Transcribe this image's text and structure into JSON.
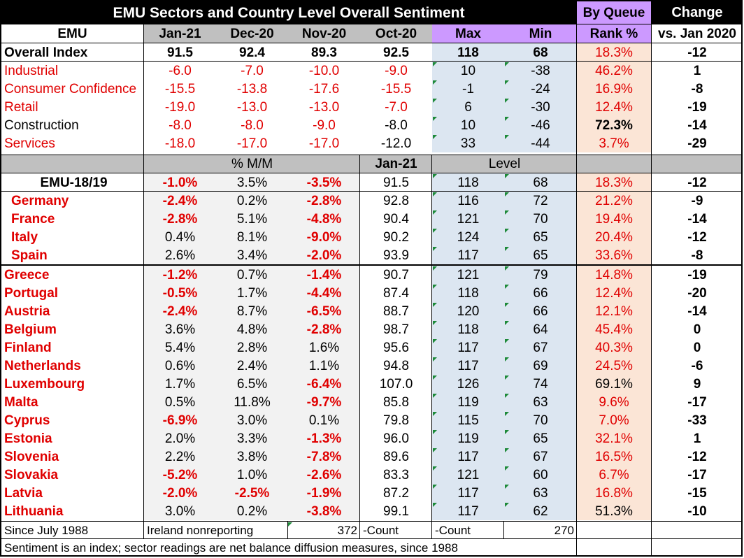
{
  "title": "EMU Sectors and Country Level Overall Sentiment",
  "hdr_queue": "By Queue",
  "hdr_change": "Change",
  "col_emu": "EMU",
  "col_jan21": "Jan-21",
  "col_dec20": "Dec-20",
  "col_nov20": "Nov-20",
  "col_oct20": "Oct-20",
  "col_max": "Max",
  "col_min": "Min",
  "col_rank": "Rank %",
  "col_vs": "vs. Jan 2020",
  "sectors": [
    {
      "name": "Overall Index",
      "jan": "91.5",
      "dec": "92.4",
      "nov": "89.3",
      "oct": "92.5",
      "max": "118",
      "min": "68",
      "rank": "18.3%",
      "chg": "-12"
    },
    {
      "name": "Industrial",
      "jan": "-6.0",
      "dec": "-7.0",
      "nov": "-10.0",
      "oct": "-9.0",
      "max": "10",
      "min": "-38",
      "rank": "46.2%",
      "chg": "1"
    },
    {
      "name": "Consumer Confidence",
      "jan": "-15.5",
      "dec": "-13.8",
      "nov": "-17.6",
      "oct": "-15.5",
      "max": "-1",
      "min": "-24",
      "rank": "16.9%",
      "chg": "-8"
    },
    {
      "name": "Retail",
      "jan": "-19.0",
      "dec": "-13.0",
      "nov": "-13.0",
      "oct": "-7.0",
      "max": "6",
      "min": "-30",
      "rank": "12.4%",
      "chg": "-19"
    },
    {
      "name": "Construction",
      "jan": "-8.0",
      "dec": "-8.0",
      "nov": "-9.0",
      "oct": "-8.0",
      "max": "10",
      "min": "-46",
      "rank": "72.3%",
      "chg": "-14"
    },
    {
      "name": "Services",
      "jan": "-18.0",
      "dec": "-17.0",
      "nov": "-17.0",
      "oct": "-12.0",
      "max": "33",
      "min": "-44",
      "rank": "3.7%",
      "chg": "-29"
    }
  ],
  "sub_mm": "% M/M",
  "sub_jan21": "Jan-21",
  "sub_level": "Level",
  "countries": [
    {
      "name": "EMU-18/19",
      "m1": "-1.0%",
      "m2": "3.5%",
      "m3": "-3.5%",
      "jan": "91.5",
      "max": "118",
      "min": "68",
      "rank": "18.3%",
      "chg": "-12"
    },
    {
      "name": "Germany",
      "m1": "-2.4%",
      "m2": "0.2%",
      "m3": "-2.8%",
      "jan": "92.8",
      "max": "116",
      "min": "72",
      "rank": "21.2%",
      "chg": "-9"
    },
    {
      "name": "France",
      "m1": "-2.8%",
      "m2": "5.1%",
      "m3": "-4.8%",
      "jan": "90.4",
      "max": "121",
      "min": "70",
      "rank": "19.4%",
      "chg": "-14"
    },
    {
      "name": "Italy",
      "m1": "0.4%",
      "m2": "8.1%",
      "m3": "-9.0%",
      "jan": "90.2",
      "max": "124",
      "min": "65",
      "rank": "20.4%",
      "chg": "-12"
    },
    {
      "name": "Spain",
      "m1": "2.6%",
      "m2": "3.4%",
      "m3": "-2.0%",
      "jan": "93.9",
      "max": "117",
      "min": "65",
      "rank": "33.6%",
      "chg": "-8"
    },
    {
      "name": "Greece",
      "m1": "-1.2%",
      "m2": "0.7%",
      "m3": "-1.4%",
      "jan": "90.7",
      "max": "121",
      "min": "79",
      "rank": "14.8%",
      "chg": "-19"
    },
    {
      "name": "Portugal",
      "m1": "-0.5%",
      "m2": "1.7%",
      "m3": "-4.4%",
      "jan": "87.4",
      "max": "118",
      "min": "66",
      "rank": "12.4%",
      "chg": "-20"
    },
    {
      "name": "Austria",
      "m1": "-2.4%",
      "m2": "8.7%",
      "m3": "-6.5%",
      "jan": "88.7",
      "max": "120",
      "min": "66",
      "rank": "12.1%",
      "chg": "-14"
    },
    {
      "name": "Belgium",
      "m1": "3.6%",
      "m2": "4.8%",
      "m3": "-2.8%",
      "jan": "98.7",
      "max": "118",
      "min": "64",
      "rank": "45.4%",
      "chg": "0"
    },
    {
      "name": "Finland",
      "m1": "5.4%",
      "m2": "2.8%",
      "m3": "1.6%",
      "jan": "95.6",
      "max": "117",
      "min": "67",
      "rank": "40.3%",
      "chg": "0"
    },
    {
      "name": "Netherlands",
      "m1": "0.6%",
      "m2": "2.4%",
      "m3": "1.1%",
      "jan": "94.8",
      "max": "117",
      "min": "69",
      "rank": "24.5%",
      "chg": "-6"
    },
    {
      "name": "Luxembourg",
      "m1": "1.7%",
      "m2": "6.5%",
      "m3": "-6.4%",
      "jan": "107.0",
      "max": "126",
      "min": "74",
      "rank": "69.1%",
      "chg": "9"
    },
    {
      "name": "Malta",
      "m1": "0.5%",
      "m2": "11.8%",
      "m3": "-9.7%",
      "jan": "85.8",
      "max": "119",
      "min": "63",
      "rank": "9.6%",
      "chg": "-17"
    },
    {
      "name": "Cyprus",
      "m1": "-6.9%",
      "m2": "3.0%",
      "m3": "0.1%",
      "jan": "79.8",
      "max": "115",
      "min": "70",
      "rank": "7.0%",
      "chg": "-33"
    },
    {
      "name": "Estonia",
      "m1": "2.0%",
      "m2": "3.3%",
      "m3": "-1.3%",
      "jan": "96.0",
      "max": "119",
      "min": "65",
      "rank": "32.1%",
      "chg": "1"
    },
    {
      "name": "Slovenia",
      "m1": "2.2%",
      "m2": "3.8%",
      "m3": "-7.8%",
      "jan": "89.6",
      "max": "117",
      "min": "67",
      "rank": "16.5%",
      "chg": "-12"
    },
    {
      "name": "Slovakia",
      "m1": "-5.2%",
      "m2": "1.0%",
      "m3": "-2.6%",
      "jan": "83.3",
      "max": "121",
      "min": "60",
      "rank": "6.7%",
      "chg": "-17"
    },
    {
      "name": "Latvia",
      "m1": "-2.0%",
      "m2": "-2.5%",
      "m3": "-1.9%",
      "jan": "87.2",
      "max": "117",
      "min": "63",
      "rank": "16.8%",
      "chg": "-15"
    },
    {
      "name": "Lithuania",
      "m1": "3.0%",
      "m2": "0.2%",
      "m3": "-3.8%",
      "jan": "99.1",
      "max": "117",
      "min": "62",
      "rank": "51.3%",
      "chg": "-10"
    }
  ],
  "footer": {
    "since": "Since July  1988",
    "ireland": "Ireland nonreporting",
    "count_val": "372",
    "count1": "-Count",
    "count2": "-Count",
    "count_val2": "270",
    "note": "Sentiment is an index; sector readings are net balance diffusion measures, since 1988"
  },
  "colors": {
    "red": "#e00000",
    "header_bg": "#000000",
    "purple": "#cc99ff",
    "blue": "#dce6f1",
    "peach": "#fbe5d6",
    "grey": "#c0c0c0"
  }
}
